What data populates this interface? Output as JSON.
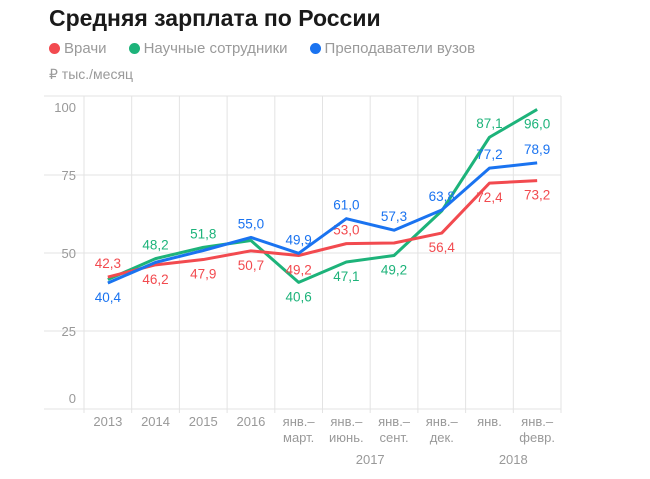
{
  "chart_data": {
    "type": "line",
    "title": "Средняя зарплата по России",
    "ylabel": "₽ тыс./месяц",
    "ylim": [
      0,
      100
    ],
    "yticks": [
      "0",
      "25",
      "50",
      "75",
      "100"
    ],
    "grid": true,
    "legend_position": "top",
    "categories": [
      "2013",
      "2014",
      "2015",
      "2016",
      "янв.–\nмарт.",
      "янв.–\nиюнь.",
      "янв.–\nсент.",
      "янв.–\nдек.",
      "янв.",
      "янв.–\nфевр."
    ],
    "year_groups": [
      {
        "label": "2017"
      },
      {
        "label": "2018"
      }
    ],
    "series": [
      {
        "name": "Врачи",
        "color": "#f24a4f",
        "values": [
          42.3,
          46.2,
          47.9,
          50.7,
          49.2,
          53.0,
          53.2,
          56.4,
          72.4,
          73.2
        ],
        "labels": [
          "42,3",
          "46,2",
          "47,9",
          "50,7",
          "49,2",
          "53,0",
          null,
          "56,4",
          "72,4",
          "73,2"
        ]
      },
      {
        "name": "Научные сотрудники",
        "color": "#1db37a",
        "values": [
          41.5,
          48.2,
          51.8,
          54.0,
          40.6,
          47.1,
          49.2,
          63.5,
          87.1,
          96.0
        ],
        "labels": [
          null,
          "48,2",
          "51,8",
          null,
          "40,6",
          "47,1",
          "49,2",
          null,
          "87,1",
          "96,0"
        ]
      },
      {
        "name": "Преподаватели вузов",
        "color": "#1a73f0",
        "values": [
          40.4,
          47.0,
          50.8,
          55.0,
          49.9,
          61.0,
          57.3,
          63.8,
          77.2,
          78.9
        ],
        "labels": [
          "40,4",
          null,
          null,
          "55,0",
          "49,9",
          "61,0",
          "57,3",
          "63,8",
          "77,2",
          "78,9"
        ]
      }
    ]
  }
}
